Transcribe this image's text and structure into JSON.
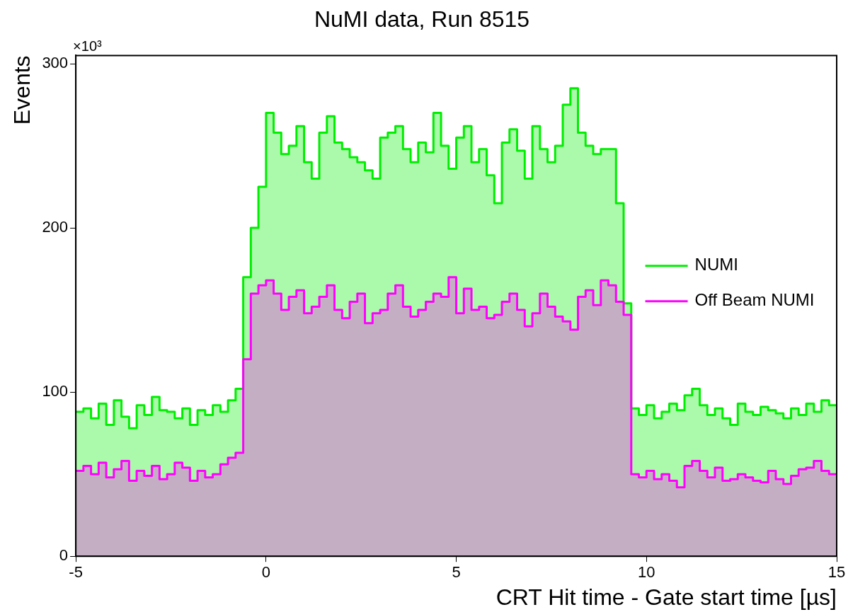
{
  "chart_data": {
    "type": "area",
    "title": "NuMI data, Run 8515",
    "xlabel": "CRT Hit time - Gate start time [µs]",
    "ylabel": "Events",
    "annotations": [
      "×10³"
    ],
    "x": [
      -5,
      -4.8,
      -4.8,
      -4.6,
      -4.6,
      -4.4,
      -4.4,
      -4.2,
      -4.2,
      -4,
      -4,
      -3.8,
      -3.8,
      -3.6,
      -3.6,
      -3.4,
      -3.4,
      -3.2,
      -3.2,
      -3,
      -3,
      -2.8,
      -2.8,
      -2.6,
      -2.6,
      -2.4,
      -2.4,
      -2.2,
      -2.2,
      -2,
      -2,
      -1.8,
      -1.8,
      -1.6,
      -1.6,
      -1.4,
      -1.4,
      -1.2,
      -1.2,
      -1,
      -1,
      -0.8,
      -0.8,
      -0.6,
      -0.6,
      -0.4,
      -0.4,
      -0.2,
      -0.2,
      0,
      0,
      0.2,
      0.2,
      0.4,
      0.4,
      0.6,
      0.6,
      0.8,
      0.8,
      1,
      1,
      1.2,
      1.2,
      1.4,
      1.4,
      1.6,
      1.6,
      1.8,
      1.8,
      2,
      2,
      2.2,
      2.2,
      2.4,
      2.4,
      2.6,
      2.6,
      2.8,
      2.8,
      3,
      3,
      3.2,
      3.2,
      3.4,
      3.4,
      3.6,
      3.6,
      3.8,
      3.8,
      4,
      4,
      4.2,
      4.2,
      4.4,
      4.4,
      4.6,
      4.6,
      4.8,
      4.8,
      5,
      5,
      5.2,
      5.2,
      5.4,
      5.4,
      5.6,
      5.6,
      5.8,
      5.8,
      6,
      6,
      6.2,
      6.2,
      6.4,
      6.4,
      6.6,
      6.6,
      6.8,
      6.8,
      7,
      7,
      7.2,
      7.2,
      7.4,
      7.4,
      7.6,
      7.6,
      7.8,
      7.8,
      8,
      8,
      8.2,
      8.2,
      8.4,
      8.4,
      8.6,
      8.6,
      8.8,
      8.8,
      9,
      9,
      9.2,
      9.2,
      9.4,
      9.4,
      9.6,
      9.6,
      9.8,
      9.8,
      10,
      10,
      10.2,
      10.2,
      10.4,
      10.4,
      10.6,
      10.6,
      10.8,
      10.8,
      11,
      11,
      11.2,
      11.2,
      11.4,
      11.4,
      11.6,
      11.6,
      11.8,
      11.8,
      12,
      12,
      12.2,
      12.2,
      12.4,
      12.4,
      12.6,
      12.6,
      12.8,
      12.8,
      13,
      13,
      13.2,
      13.2,
      13.4,
      13.4,
      13.6,
      13.6,
      13.8,
      13.8,
      14,
      14,
      14.2,
      14.2,
      14.4,
      14.4,
      14.6,
      14.6,
      14.8,
      14.8,
      15
    ],
    "series": [
      {
        "name": "NUMI",
        "color": "#00ee00",
        "values": [
          88,
          88,
          90,
          90,
          84,
          84,
          93,
          93,
          80,
          80,
          95,
          95,
          85,
          85,
          78,
          78,
          92,
          92,
          86,
          86,
          97,
          97,
          89,
          89,
          88,
          88,
          84,
          84,
          90,
          90,
          80,
          80,
          89,
          89,
          86,
          86,
          92,
          92,
          88,
          88,
          95,
          95,
          102,
          102,
          170,
          170,
          200,
          200,
          225,
          225,
          270,
          270,
          258,
          258,
          245,
          245,
          250,
          250,
          262,
          262,
          240,
          240,
          230,
          230,
          258,
          258,
          268,
          268,
          252,
          252,
          248,
          248,
          243,
          243,
          240,
          240,
          235,
          235,
          230,
          230,
          255,
          255,
          258,
          258,
          262,
          262,
          248,
          248,
          240,
          240,
          252,
          252,
          246,
          246,
          270,
          270,
          250,
          250,
          236,
          236,
          255,
          255,
          262,
          262,
          240,
          240,
          248,
          248,
          232,
          232,
          215,
          215,
          252,
          252,
          260,
          260,
          247,
          247,
          230,
          230,
          262,
          262,
          248,
          248,
          240,
          240,
          250,
          250,
          275,
          275,
          285,
          285,
          258,
          258,
          250,
          250,
          245,
          245,
          248,
          248,
          248,
          248,
          215,
          215,
          154,
          154,
          90,
          90,
          86,
          86,
          92,
          92,
          84,
          84,
          88,
          88,
          93,
          93,
          89,
          89,
          98,
          98,
          102,
          102,
          92,
          92,
          86,
          86,
          90,
          90,
          84,
          84,
          80,
          80,
          93,
          93,
          88,
          88,
          86,
          86,
          91,
          91,
          89,
          89,
          87,
          87,
          84,
          84,
          90,
          90,
          86,
          86,
          93,
          93,
          88,
          88,
          95,
          95,
          92,
          92
        ]
      },
      {
        "name": "Off Beam NUMI",
        "color": "#ff00ff",
        "values": [
          52,
          52,
          55,
          55,
          50,
          50,
          57,
          57,
          48,
          48,
          53,
          53,
          58,
          58,
          46,
          46,
          52,
          52,
          49,
          49,
          55,
          55,
          47,
          47,
          50,
          50,
          57,
          57,
          54,
          54,
          46,
          46,
          52,
          52,
          48,
          48,
          50,
          50,
          56,
          56,
          60,
          60,
          63,
          63,
          120,
          120,
          160,
          160,
          165,
          165,
          168,
          168,
          160,
          160,
          150,
          150,
          158,
          158,
          162,
          162,
          148,
          148,
          152,
          152,
          158,
          158,
          165,
          165,
          150,
          150,
          145,
          145,
          155,
          155,
          160,
          160,
          142,
          142,
          148,
          148,
          150,
          150,
          160,
          160,
          165,
          165,
          152,
          152,
          146,
          146,
          150,
          150,
          155,
          155,
          160,
          160,
          158,
          158,
          170,
          170,
          148,
          148,
          163,
          163,
          150,
          150,
          152,
          152,
          145,
          145,
          147,
          147,
          155,
          155,
          160,
          160,
          150,
          150,
          140,
          140,
          148,
          148,
          160,
          160,
          152,
          152,
          146,
          146,
          143,
          143,
          138,
          138,
          158,
          158,
          162,
          162,
          153,
          153,
          168,
          168,
          165,
          165,
          155,
          155,
          147,
          147,
          50,
          50,
          48,
          48,
          52,
          52,
          47,
          47,
          50,
          50,
          46,
          46,
          42,
          42,
          55,
          55,
          58,
          58,
          52,
          52,
          48,
          48,
          54,
          54,
          46,
          46,
          47,
          47,
          50,
          50,
          48,
          48,
          46,
          46,
          45,
          45,
          52,
          52,
          47,
          47,
          44,
          44,
          49,
          49,
          53,
          53,
          54,
          54,
          58,
          58,
          52,
          52,
          50,
          50
        ]
      }
    ],
    "xlim": [
      -5,
      15
    ],
    "xticks": [
      -5,
      0,
      5,
      10,
      15
    ],
    "ylim": [
      0,
      305
    ],
    "yticks": [
      0,
      100,
      200,
      300
    ],
    "legend": "top right"
  }
}
